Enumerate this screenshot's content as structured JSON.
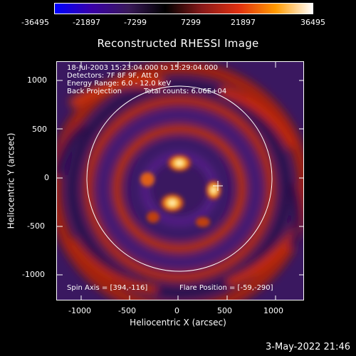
{
  "colorbar": {
    "ticks": [
      "-36495",
      "-21897",
      "-7299",
      "7299",
      "21897",
      "36495"
    ],
    "colors": [
      "#0000ff",
      "#3a00a8",
      "#3a1a5a",
      "#000000",
      "#8a1a1a",
      "#e03010",
      "#ff9a00",
      "#ffffff"
    ]
  },
  "title": "Reconstructed RHESSI Image",
  "info": {
    "line1": "18-Jul-2003 15:23:04.000 to 15:29:04.000",
    "line2": "Detectors: 7F 8F 9F, Att 0",
    "line3": "Energy Range: 6.0 - 12.0 keV",
    "line4_left": "Back Projection",
    "line4_right": "Total counts: 6.06E+04",
    "spin_axis": "Spin Axis = [394,-116]",
    "flare_position": "Flare Position = [-59,-290]"
  },
  "axes": {
    "xlabel": "Heliocentric X (arcsec)",
    "ylabel": "Heliocentric Y (arcsec)",
    "xticks": [
      "-1000",
      "-500",
      "0",
      "500",
      "1000"
    ],
    "yticks": [
      "1000",
      "500",
      "0",
      "-500",
      "-1000"
    ]
  },
  "footer": {
    "date": "3-May-2022 21:46"
  }
}
